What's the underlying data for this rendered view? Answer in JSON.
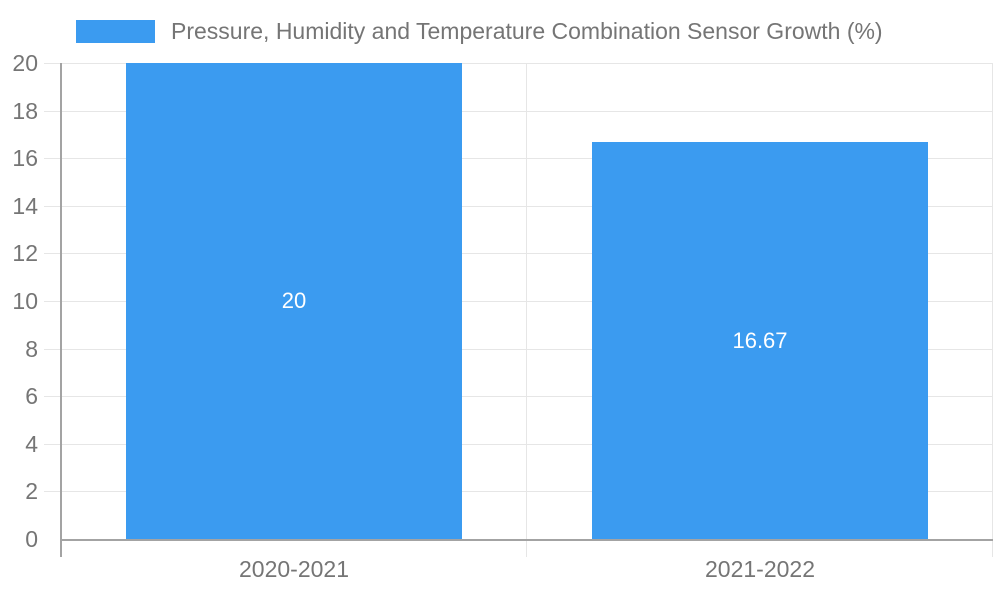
{
  "chart_data": {
    "type": "bar",
    "legend": "Pressure, Humidity and Temperature Combination Sensor Growth (%)",
    "legend_position": "top",
    "categories": [
      "2020-2021",
      "2021-2022"
    ],
    "series": [
      {
        "name": "Pressure, Humidity and Temperature Combination Sensor Growth (%)",
        "values": [
          20,
          16.67
        ],
        "value_labels": [
          "20",
          "16.67"
        ]
      }
    ],
    "xlabel": "",
    "ylabel": "",
    "ylim": [
      0,
      20
    ],
    "yticks": [
      0,
      2,
      4,
      6,
      8,
      10,
      12,
      14,
      16,
      18,
      20
    ],
    "grid": true,
    "colors": {
      "bar": "#3B9BF0",
      "axis_line": "#A3A3A3",
      "gridline": "#E6E6E6",
      "label_text": "#757575",
      "bar_label_text": "#FFFFFF",
      "background": "#FFFFFF"
    }
  }
}
